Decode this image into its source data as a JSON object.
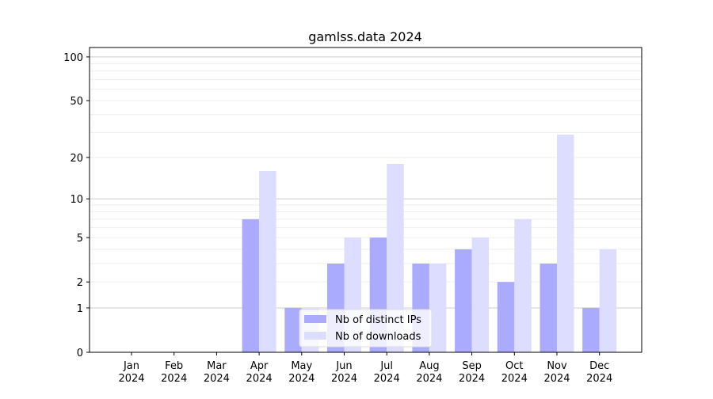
{
  "chart_data": {
    "type": "bar",
    "title": "gamlss.data 2024",
    "categories": [
      "Jan\n2024",
      "Feb\n2024",
      "Mar\n2024",
      "Apr\n2024",
      "May\n2024",
      "Jun\n2024",
      "Jul\n2024",
      "Aug\n2024",
      "Sep\n2024",
      "Oct\n2024",
      "Nov\n2024",
      "Dec\n2024"
    ],
    "series": [
      {
        "name": "Nb of distinct IPs",
        "color": "#aaaaff",
        "values": [
          0,
          0,
          0,
          7,
          1,
          3,
          5,
          3,
          4,
          2,
          3,
          1
        ]
      },
      {
        "name": "Nb of downloads",
        "color": "#ddddff",
        "values": [
          0,
          0,
          0,
          16,
          1,
          5,
          18,
          3,
          5,
          7,
          29,
          4
        ]
      }
    ],
    "yscale": "log(1+y)",
    "yticks": [
      0,
      1,
      2,
      5,
      10,
      20,
      50,
      100
    ],
    "ylim": [
      0,
      116
    ],
    "grid": true,
    "legend": "bottom-center"
  }
}
